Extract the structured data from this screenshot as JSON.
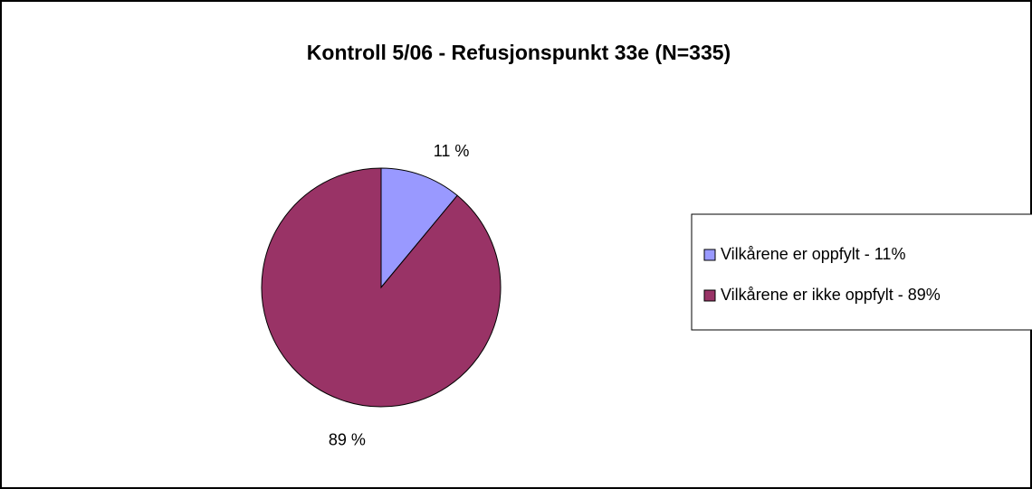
{
  "chart_data": {
    "type": "pie",
    "title": "Kontroll 5/06 - Refusjonspunkt 33e (N=335)",
    "categories": [
      "Vilkårene er oppfylt - 11%",
      "Vilkårene er ikke oppfylt - 89%"
    ],
    "values": [
      11,
      89
    ],
    "value_labels": [
      "11 %",
      "89 %"
    ],
    "colors": [
      "#9999ff",
      "#993366"
    ],
    "legend": "right"
  }
}
